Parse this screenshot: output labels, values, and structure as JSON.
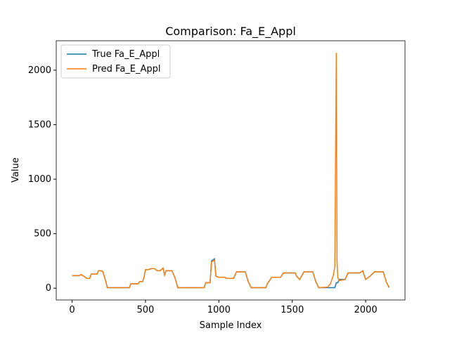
{
  "chart_data": {
    "type": "line",
    "title": "Comparison: Fa_E_Appl",
    "xlabel": "Sample Index",
    "ylabel": "Value",
    "x": [
      0,
      50,
      60,
      80,
      100,
      120,
      130,
      170,
      180,
      200,
      210,
      230,
      240,
      390,
      400,
      450,
      460,
      480,
      490,
      500,
      520,
      540,
      560,
      580,
      600,
      620,
      630,
      640,
      680,
      700,
      720,
      900,
      910,
      940,
      950,
      970,
      980,
      1000,
      1040,
      1050,
      1100,
      1120,
      1180,
      1200,
      1220,
      1320,
      1330,
      1360,
      1420,
      1440,
      1520,
      1530,
      1550,
      1580,
      1640,
      1660,
      1680,
      1740,
      1760,
      1780,
      1790,
      1800,
      1805,
      1810,
      1820,
      1860,
      1880,
      1960,
      1980,
      2000,
      2030,
      2060,
      2120,
      2140,
      2160
    ],
    "series": [
      {
        "name": "True Fa_E_Appl",
        "color": "#1f77b4",
        "values": [
          115,
          115,
          125,
          110,
          90,
          90,
          130,
          130,
          160,
          160,
          150,
          60,
          5,
          5,
          40,
          40,
          60,
          60,
          100,
          170,
          170,
          180,
          180,
          160,
          160,
          185,
          120,
          160,
          160,
          100,
          5,
          5,
          50,
          50,
          250,
          270,
          110,
          100,
          100,
          90,
          90,
          150,
          150,
          60,
          5,
          5,
          40,
          100,
          100,
          140,
          140,
          110,
          80,
          150,
          150,
          60,
          5,
          5,
          5,
          5,
          5,
          50,
          50,
          50,
          80,
          80,
          140,
          140,
          160,
          80,
          110,
          150,
          150,
          60,
          5
        ]
      },
      {
        "name": "Pred Fa_E_Appl",
        "color": "#ff7f0e",
        "values": [
          115,
          115,
          125,
          110,
          90,
          90,
          130,
          130,
          160,
          160,
          150,
          60,
          5,
          5,
          40,
          40,
          60,
          60,
          100,
          170,
          170,
          180,
          180,
          160,
          160,
          185,
          120,
          160,
          160,
          100,
          5,
          5,
          50,
          50,
          240,
          260,
          110,
          100,
          100,
          90,
          90,
          150,
          150,
          60,
          5,
          5,
          40,
          100,
          100,
          140,
          140,
          110,
          80,
          150,
          150,
          60,
          5,
          10,
          40,
          120,
          200,
          2160,
          250,
          100,
          70,
          80,
          140,
          140,
          160,
          80,
          110,
          150,
          150,
          60,
          5
        ]
      }
    ],
    "xlim": [
      -108,
      2268
    ],
    "ylim": [
      -108,
      2270
    ],
    "xticks": [
      0,
      500,
      1000,
      1500,
      2000
    ],
    "yticks": [
      0,
      500,
      1000,
      1500,
      2000
    ],
    "legend": "upper left"
  }
}
